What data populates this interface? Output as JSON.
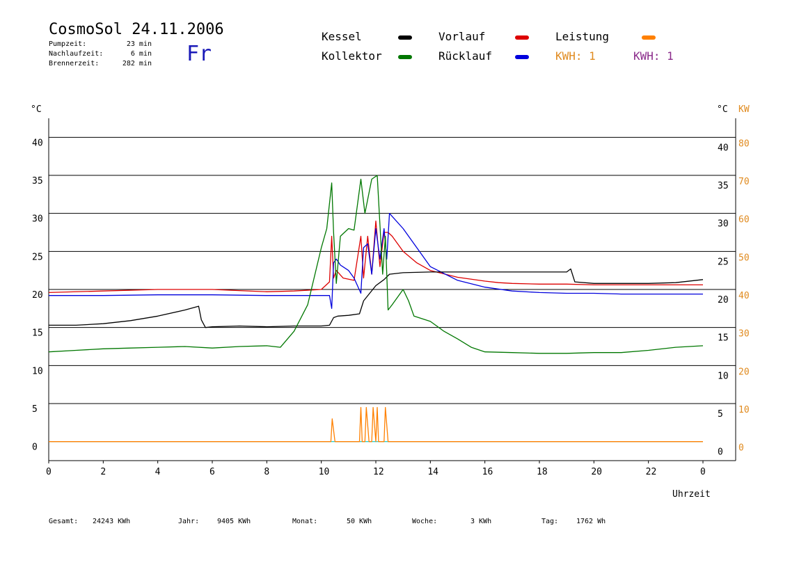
{
  "header": {
    "title": "CosmoSol 24.11.2006",
    "weekday": "Fr",
    "stats": [
      {
        "label": "Pumpzeit:",
        "value": "23 min"
      },
      {
        "label": "Nachlaufzeit:",
        "value": "6 min"
      },
      {
        "label": "Brennerzeit:",
        "value": "282 min"
      }
    ]
  },
  "legend": {
    "items": [
      {
        "label": "Kessel",
        "color": "#000000"
      },
      {
        "label": "Vorlauf",
        "color": "#dd0000"
      },
      {
        "label": "Leistung",
        "color": "#ff8000"
      },
      {
        "label": "Kollektor",
        "color": "#007700"
      },
      {
        "label": "Rücklauf",
        "color": "#0000dd"
      }
    ],
    "kwh": [
      {
        "text": "KWH: 1",
        "color": "#e08a1e"
      },
      {
        "text": "KWH: 1",
        "color": "#8a2a8a"
      }
    ]
  },
  "footer": [
    {
      "label": "Gesamt:",
      "value": "24243 KWh"
    },
    {
      "label": "Jahr:",
      "value": "9405 KWh"
    },
    {
      "label": "Monat:",
      "value": "50 KWh"
    },
    {
      "label": "Woche:",
      "value": "3 KWh"
    },
    {
      "label": "Tag:",
      "value": "1762 Wh"
    }
  ],
  "chart_data": {
    "type": "line",
    "xlabel": "Uhrzeit",
    "ylabel_left": "°C",
    "ylabel_right_temp": "°C",
    "ylabel_right_power": "KW",
    "xlim": [
      0,
      24
    ],
    "ylim": [
      -2.5,
      42.5
    ],
    "x_tick_labels": [
      "0",
      "2",
      "4",
      "6",
      "8",
      "10",
      "12",
      "14",
      "16",
      "18",
      "20",
      "22",
      "0"
    ],
    "y_ticks": [
      0,
      5,
      10,
      15,
      20,
      25,
      30,
      35,
      40
    ],
    "y_right_power_ticks": [
      0,
      10,
      20,
      30,
      40,
      50,
      60,
      70,
      80
    ],
    "grid": "horizontal",
    "series": [
      {
        "name": "Vorlauf",
        "color": "#dd0000",
        "x": [
          0,
          2,
          4,
          6,
          8,
          9,
          10,
          10.3,
          10.38,
          10.45,
          10.55,
          10.8,
          11.2,
          11.45,
          11.55,
          11.7,
          11.85,
          12,
          12.15,
          12.3,
          12.45,
          12.6,
          13,
          13.5,
          14,
          15,
          16,
          16.5,
          17,
          18,
          19,
          20,
          21,
          22,
          23,
          24
        ],
        "y": [
          19.6,
          19.8,
          20,
          20,
          19.7,
          19.8,
          20,
          21,
          27,
          21.5,
          22.5,
          21.5,
          21.2,
          27,
          21.5,
          27,
          22,
          29,
          23,
          27.5,
          27.5,
          27,
          25,
          23.5,
          22.5,
          21.6,
          21.1,
          20.9,
          20.8,
          20.7,
          20.7,
          20.6,
          20.6,
          20.6,
          20.6,
          20.6
        ]
      },
      {
        "name": "Rücklauf",
        "color": "#0000dd",
        "x": [
          0,
          2,
          4,
          6,
          8,
          10,
          10.3,
          10.38,
          10.45,
          10.55,
          10.7,
          11,
          11.2,
          11.45,
          11.55,
          11.7,
          11.85,
          12,
          12.15,
          12.3,
          12.4,
          12.5,
          13,
          13.5,
          14,
          15,
          16,
          17,
          18,
          19,
          20,
          21,
          22,
          23,
          24
        ],
        "y": [
          19.2,
          19.2,
          19.3,
          19.3,
          19.2,
          19.2,
          19.2,
          17.5,
          23.5,
          24,
          23.2,
          22.5,
          21.5,
          19.5,
          25.5,
          26,
          22,
          28,
          24,
          28,
          24,
          30,
          28,
          25.5,
          23,
          21.2,
          20.3,
          19.8,
          19.6,
          19.5,
          19.5,
          19.4,
          19.4,
          19.4,
          19.4
        ]
      },
      {
        "name": "Kessel",
        "color": "#000000",
        "x": [
          0,
          1,
          2,
          3,
          4,
          5,
          5.5,
          5.6,
          5.75,
          6,
          7,
          8,
          9,
          10,
          10.3,
          10.45,
          10.6,
          11,
          11.4,
          11.55,
          12,
          12.3,
          12.5,
          13,
          14,
          15,
          16,
          17,
          18,
          19,
          19.15,
          19.3,
          20,
          21,
          22,
          23,
          24
        ],
        "y": [
          15.3,
          15.3,
          15.5,
          15.9,
          16.5,
          17.3,
          17.8,
          16,
          15,
          15.1,
          15.2,
          15.1,
          15.2,
          15.2,
          15.3,
          16.3,
          16.5,
          16.6,
          16.8,
          18.5,
          20.5,
          21.3,
          22,
          22.2,
          22.3,
          22.3,
          22.3,
          22.3,
          22.3,
          22.3,
          22.7,
          21,
          20.8,
          20.8,
          20.8,
          20.9,
          21.3
        ]
      },
      {
        "name": "Kollektor",
        "color": "#007700",
        "x": [
          0,
          1,
          2,
          3,
          4,
          5,
          6,
          7,
          8,
          8.5,
          9,
          9.5,
          10,
          10.2,
          10.38,
          10.45,
          10.55,
          10.7,
          11,
          11.2,
          11.45,
          11.6,
          11.85,
          12.05,
          12.25,
          12.35,
          12.45,
          12.6,
          13,
          13.2,
          13.4,
          14,
          14.5,
          15,
          15.5,
          16,
          17,
          18,
          19,
          20,
          21,
          22,
          23,
          24
        ],
        "y": [
          11.8,
          12,
          12.2,
          12.3,
          12.4,
          12.5,
          12.3,
          12.5,
          12.6,
          12.4,
          14.5,
          18,
          25.5,
          28,
          34,
          27.5,
          20.8,
          27,
          28,
          27.8,
          34.5,
          30,
          34.5,
          35,
          22,
          27,
          17.3,
          18,
          20,
          18.5,
          16.5,
          15.8,
          14.5,
          13.5,
          12.4,
          11.8,
          11.7,
          11.6,
          11.6,
          11.7,
          11.7,
          12,
          12.4,
          12.6
        ]
      },
      {
        "name": "Leistung",
        "color": "#ff8000",
        "x": [
          0,
          10.35,
          10.4,
          10.5,
          11.4,
          11.45,
          11.5,
          11.6,
          11.65,
          11.75,
          11.85,
          11.9,
          12,
          12.05,
          12.1,
          12.3,
          12.35,
          12.45,
          24
        ],
        "y": [
          0,
          0,
          3,
          0,
          0,
          4.5,
          0,
          0,
          4.5,
          0,
          0,
          4.5,
          0,
          4.5,
          0,
          0,
          4.5,
          0,
          0
        ]
      }
    ]
  }
}
